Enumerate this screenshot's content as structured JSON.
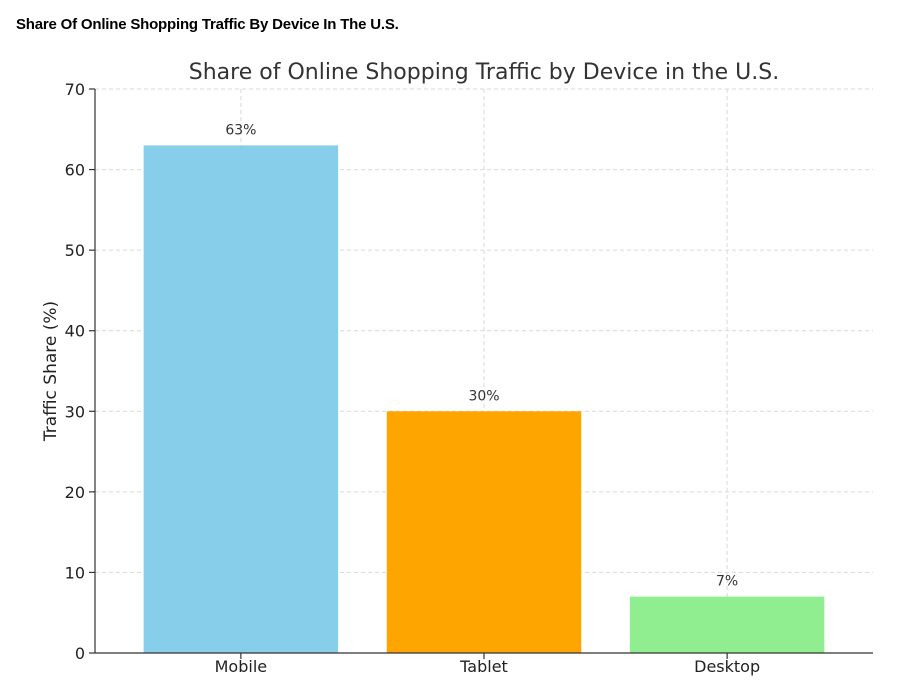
{
  "page": {
    "heading": "Share Of Online Shopping Traffic By Device In The U.S."
  },
  "chart_data": {
    "type": "bar",
    "title": "Share of Online Shopping Traffic by Device in the U.S.",
    "xlabel": "",
    "ylabel": "Traffic Share (%)",
    "ylim": [
      0,
      70
    ],
    "yticks": [
      0,
      10,
      20,
      30,
      40,
      50,
      60,
      70
    ],
    "grid": true,
    "categories": [
      "Mobile",
      "Tablet",
      "Desktop"
    ],
    "values": [
      63,
      30,
      7
    ],
    "data_labels": [
      "63%",
      "30%",
      "7%"
    ],
    "colors": [
      "#87ceeb",
      "#ffa500",
      "#90ee90"
    ]
  }
}
